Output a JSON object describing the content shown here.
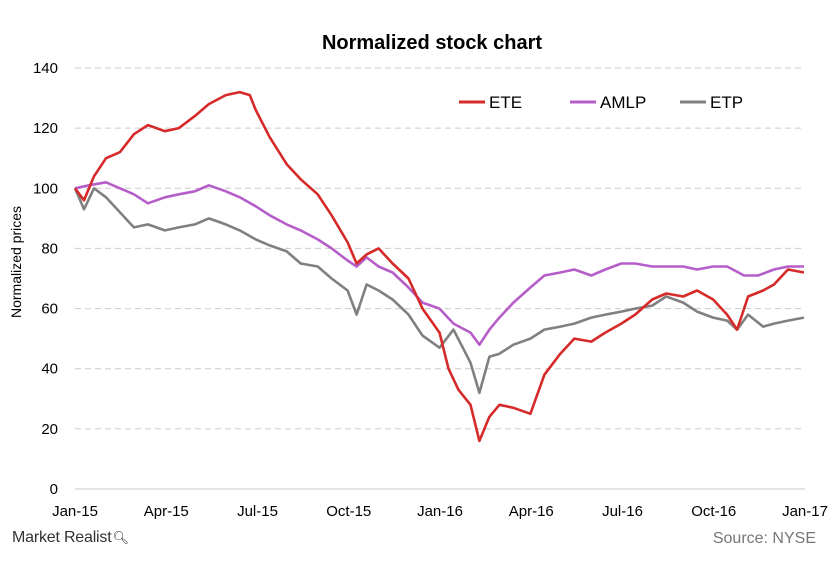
{
  "chart_data": {
    "type": "line",
    "title": "Normalized stock chart",
    "xlabel": "",
    "ylabel": "Normalized prices",
    "ylim": [
      0,
      140
    ],
    "yticks": [
      0,
      20,
      40,
      60,
      80,
      100,
      120,
      140
    ],
    "xlim": [
      "2015-01",
      "2017-01"
    ],
    "xticks": [
      "Jan-15",
      "Apr-15",
      "Jul-15",
      "Oct-15",
      "Jan-16",
      "Apr-16",
      "Jul-16",
      "Oct-16",
      "Jan-17"
    ],
    "grid": "horizontal-dashed",
    "legend_position": "top-right",
    "series": [
      {
        "name": "ETE",
        "color": "#d62a2a",
        "points": [
          [
            "2015-01-01",
            100
          ],
          [
            "2015-01-10",
            96
          ],
          [
            "2015-01-20",
            104
          ],
          [
            "2015-02-01",
            110
          ],
          [
            "2015-02-15",
            112
          ],
          [
            "2015-03-01",
            118
          ],
          [
            "2015-03-15",
            121
          ],
          [
            "2015-04-01",
            119
          ],
          [
            "2015-04-15",
            120
          ],
          [
            "2015-05-01",
            124
          ],
          [
            "2015-05-15",
            128
          ],
          [
            "2015-06-01",
            131
          ],
          [
            "2015-06-15",
            132
          ],
          [
            "2015-06-25",
            131
          ],
          [
            "2015-07-01",
            126
          ],
          [
            "2015-07-15",
            117
          ],
          [
            "2015-08-01",
            108
          ],
          [
            "2015-08-15",
            103
          ],
          [
            "2015-09-01",
            98
          ],
          [
            "2015-09-15",
            91
          ],
          [
            "2015-10-01",
            82
          ],
          [
            "2015-10-10",
            75
          ],
          [
            "2015-10-20",
            78
          ],
          [
            "2015-11-01",
            80
          ],
          [
            "2015-11-15",
            75
          ],
          [
            "2015-12-01",
            70
          ],
          [
            "2015-12-15",
            60
          ],
          [
            "2016-01-01",
            52
          ],
          [
            "2016-01-10",
            40
          ],
          [
            "2016-01-20",
            33
          ],
          [
            "2016-02-01",
            28
          ],
          [
            "2016-02-10",
            16
          ],
          [
            "2016-02-20",
            24
          ],
          [
            "2016-03-01",
            28
          ],
          [
            "2016-03-15",
            27
          ],
          [
            "2016-04-01",
            25
          ],
          [
            "2016-04-15",
            38
          ],
          [
            "2016-05-01",
            45
          ],
          [
            "2016-05-15",
            50
          ],
          [
            "2016-06-01",
            49
          ],
          [
            "2016-06-15",
            52
          ],
          [
            "2016-07-01",
            55
          ],
          [
            "2016-07-15",
            58
          ],
          [
            "2016-08-01",
            63
          ],
          [
            "2016-08-15",
            65
          ],
          [
            "2016-09-01",
            64
          ],
          [
            "2016-09-15",
            66
          ],
          [
            "2016-10-01",
            63
          ],
          [
            "2016-10-15",
            58
          ],
          [
            "2016-10-25",
            53
          ],
          [
            "2016-11-05",
            64
          ],
          [
            "2016-11-20",
            66
          ],
          [
            "2016-12-01",
            68
          ],
          [
            "2016-12-15",
            73
          ],
          [
            "2016-12-31",
            72
          ]
        ]
      },
      {
        "name": "AMLP",
        "color": "#b55ec9",
        "points": [
          [
            "2015-01-01",
            100
          ],
          [
            "2015-01-15",
            101
          ],
          [
            "2015-02-01",
            102
          ],
          [
            "2015-02-15",
            100
          ],
          [
            "2015-03-01",
            98
          ],
          [
            "2015-03-15",
            95
          ],
          [
            "2015-04-01",
            97
          ],
          [
            "2015-04-15",
            98
          ],
          [
            "2015-05-01",
            99
          ],
          [
            "2015-05-15",
            101
          ],
          [
            "2015-06-01",
            99
          ],
          [
            "2015-06-15",
            97
          ],
          [
            "2015-07-01",
            94
          ],
          [
            "2015-07-15",
            91
          ],
          [
            "2015-08-01",
            88
          ],
          [
            "2015-08-15",
            86
          ],
          [
            "2015-09-01",
            83
          ],
          [
            "2015-09-15",
            80
          ],
          [
            "2015-10-01",
            76
          ],
          [
            "2015-10-10",
            74
          ],
          [
            "2015-10-20",
            77
          ],
          [
            "2015-11-01",
            74
          ],
          [
            "2015-11-15",
            72
          ],
          [
            "2015-12-01",
            67
          ],
          [
            "2015-12-15",
            62
          ],
          [
            "2016-01-01",
            60
          ],
          [
            "2016-01-15",
            55
          ],
          [
            "2016-02-01",
            52
          ],
          [
            "2016-02-10",
            48
          ],
          [
            "2016-02-20",
            53
          ],
          [
            "2016-03-01",
            57
          ],
          [
            "2016-03-15",
            62
          ],
          [
            "2016-04-01",
            67
          ],
          [
            "2016-04-15",
            71
          ],
          [
            "2016-05-01",
            72
          ],
          [
            "2016-05-15",
            73
          ],
          [
            "2016-06-01",
            71
          ],
          [
            "2016-06-15",
            73
          ],
          [
            "2016-07-01",
            75
          ],
          [
            "2016-07-15",
            75
          ],
          [
            "2016-08-01",
            74
          ],
          [
            "2016-08-15",
            74
          ],
          [
            "2016-09-01",
            74
          ],
          [
            "2016-09-15",
            73
          ],
          [
            "2016-10-01",
            74
          ],
          [
            "2016-10-15",
            74
          ],
          [
            "2016-11-01",
            71
          ],
          [
            "2016-11-15",
            71
          ],
          [
            "2016-12-01",
            73
          ],
          [
            "2016-12-15",
            74
          ],
          [
            "2016-12-31",
            74
          ]
        ]
      },
      {
        "name": "ETP",
        "color": "#808080",
        "points": [
          [
            "2015-01-01",
            100
          ],
          [
            "2015-01-10",
            93
          ],
          [
            "2015-01-20",
            100
          ],
          [
            "2015-02-01",
            97
          ],
          [
            "2015-02-15",
            92
          ],
          [
            "2015-03-01",
            87
          ],
          [
            "2015-03-15",
            88
          ],
          [
            "2015-04-01",
            86
          ],
          [
            "2015-04-15",
            87
          ],
          [
            "2015-05-01",
            88
          ],
          [
            "2015-05-15",
            90
          ],
          [
            "2015-06-01",
            88
          ],
          [
            "2015-06-15",
            86
          ],
          [
            "2015-07-01",
            83
          ],
          [
            "2015-07-15",
            81
          ],
          [
            "2015-08-01",
            79
          ],
          [
            "2015-08-15",
            75
          ],
          [
            "2015-09-01",
            74
          ],
          [
            "2015-09-15",
            70
          ],
          [
            "2015-10-01",
            66
          ],
          [
            "2015-10-10",
            58
          ],
          [
            "2015-10-20",
            68
          ],
          [
            "2015-11-01",
            66
          ],
          [
            "2015-11-15",
            63
          ],
          [
            "2015-12-01",
            58
          ],
          [
            "2015-12-15",
            51
          ],
          [
            "2016-01-01",
            47
          ],
          [
            "2016-01-15",
            53
          ],
          [
            "2016-02-01",
            42
          ],
          [
            "2016-02-10",
            32
          ],
          [
            "2016-02-20",
            44
          ],
          [
            "2016-03-01",
            45
          ],
          [
            "2016-03-15",
            48
          ],
          [
            "2016-04-01",
            50
          ],
          [
            "2016-04-15",
            53
          ],
          [
            "2016-05-01",
            54
          ],
          [
            "2016-05-15",
            55
          ],
          [
            "2016-06-01",
            57
          ],
          [
            "2016-06-15",
            58
          ],
          [
            "2016-07-01",
            59
          ],
          [
            "2016-07-15",
            60
          ],
          [
            "2016-08-01",
            61
          ],
          [
            "2016-08-15",
            64
          ],
          [
            "2016-09-01",
            62
          ],
          [
            "2016-09-15",
            59
          ],
          [
            "2016-10-01",
            57
          ],
          [
            "2016-10-15",
            56
          ],
          [
            "2016-10-25",
            53
          ],
          [
            "2016-11-05",
            58
          ],
          [
            "2016-11-20",
            54
          ],
          [
            "2016-12-01",
            55
          ],
          [
            "2016-12-15",
            56
          ],
          [
            "2016-12-31",
            57
          ]
        ]
      }
    ]
  },
  "footer": {
    "brand": "Market Realist",
    "brand_icon": "magnifier-q-icon",
    "source": "Source: NYSE"
  }
}
